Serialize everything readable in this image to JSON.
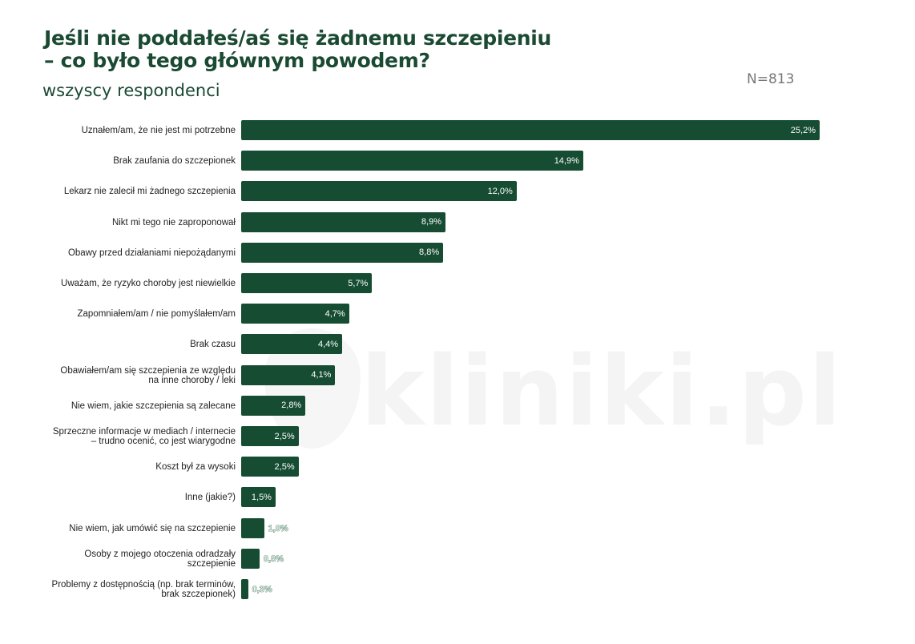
{
  "header": {
    "title_line1": "Jeśli nie poddałeś/aś się żadnemu szczepieniu",
    "title_line2": "– co było tego głównym powodem?",
    "subtitle": "wszyscy respondenci",
    "sample_size": "N=813"
  },
  "watermark": {
    "text": "kliniki.pl"
  },
  "colors": {
    "bar": "#154c32",
    "title": "#1b4a33",
    "sample_size": "#777777"
  },
  "chart_data": {
    "type": "bar",
    "orientation": "horizontal",
    "title": "Jeśli nie poddałeś/aś się żadnemu szczepieniu – co było tego głównym powodem?",
    "subtitle": "wszyscy respondenci",
    "annotation": "N=813",
    "xlabel": "",
    "ylabel": "",
    "unit": "%",
    "grid": false,
    "legend": null,
    "xlim": [
      0,
      25.2
    ],
    "categories": [
      "Uznałem/am, że nie jest mi potrzebne",
      "Brak zaufania do szczepionek",
      "Lekarz nie zalecił mi żadnego szczepienia",
      "Nikt mi tego nie zaproponował",
      "Obawy przed działaniami niepożądanymi",
      "Uważam, że ryzyko choroby jest niewielkie",
      "Zapomniałem/am / nie pomyślałem/am",
      "Brak czasu",
      "Obawiałem/am się szczepienia ze względu na inne choroby / leki",
      "Nie wiem, jakie szczepienia są zalecane",
      "Sprzeczne informacje w mediach / internecie – trudno ocenić, co jest wiarygodne",
      "Koszt był za wysoki",
      "Inne (jakie?)",
      "Nie wiem, jak umówić się na szczepienie",
      "Osoby z mojego otoczenia odradzały szczepienie",
      "Problemy z dostępnością (np. brak terminów, brak szczepionek)"
    ],
    "values": [
      25.2,
      14.9,
      12.0,
      8.9,
      8.8,
      5.7,
      4.7,
      4.4,
      4.1,
      2.8,
      2.5,
      2.5,
      1.5,
      1.0,
      0.8,
      0.3
    ],
    "value_labels": [
      "25,2%",
      "14,9%",
      "12,0%",
      "8,9%",
      "8,8%",
      "5,7%",
      "4,7%",
      "4,4%",
      "4,1%",
      "2,8%",
      "2,5%",
      "2,5%",
      "1,5%",
      "1,0%",
      "0,8%",
      "0,3%"
    ]
  }
}
